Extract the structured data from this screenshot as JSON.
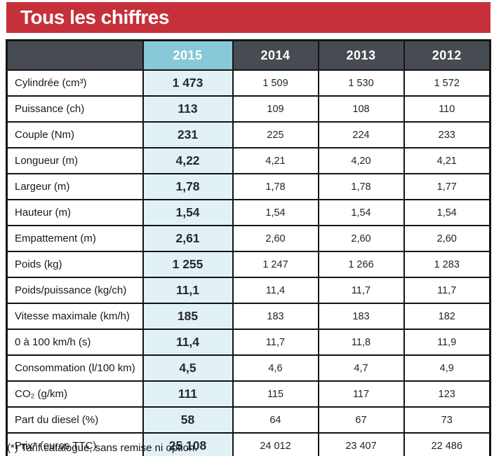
{
  "banner": {
    "title": "Tous les chiffres"
  },
  "table": {
    "columns": [
      "",
      "2015",
      "2014",
      "2013",
      "2012"
    ],
    "rows": [
      {
        "label": "Cylindrée (cm³)",
        "values": [
          "1 473",
          "1 509",
          "1 530",
          "1 572"
        ]
      },
      {
        "label": "Puissance (ch)",
        "values": [
          "113",
          "109",
          "108",
          "110"
        ]
      },
      {
        "label": "Couple (Nm)",
        "values": [
          "231",
          "225",
          "224",
          "233"
        ]
      },
      {
        "label": "Longueur (m)",
        "values": [
          "4,22",
          "4,21",
          "4,20",
          "4,21"
        ]
      },
      {
        "label": "Largeur (m)",
        "values": [
          "1,78",
          "1,78",
          "1,78",
          "1,77"
        ]
      },
      {
        "label": "Hauteur (m)",
        "values": [
          "1,54",
          "1,54",
          "1,54",
          "1,54"
        ]
      },
      {
        "label": "Empattement (m)",
        "values": [
          "2,61",
          "2,60",
          "2,60",
          "2,60"
        ]
      },
      {
        "label": "Poids (kg)",
        "values": [
          "1 255",
          "1 247",
          "1 266",
          "1 283"
        ]
      },
      {
        "label": "Poids/puissance (kg/ch)",
        "values": [
          "11,1",
          "11,4",
          "11,7",
          "11,7"
        ]
      },
      {
        "label": "Vitesse maximale (km/h)",
        "values": [
          "185",
          "183",
          "183",
          "182"
        ]
      },
      {
        "label": "0 à 100 km/h (s)",
        "values": [
          "11,4",
          "11,7",
          "11,8",
          "11,9"
        ]
      },
      {
        "label": "Consommation (l/100 km)",
        "values": [
          "4,5",
          "4,6",
          "4,7",
          "4,9"
        ]
      },
      {
        "label": "CO₂ (g/km)",
        "values": [
          "111",
          "115",
          "117",
          "123"
        ]
      },
      {
        "label": "Part du diesel (%)",
        "values": [
          "58",
          "64",
          "67",
          "73"
        ]
      },
      {
        "label": "Prix* (euros TTC)",
        "values": [
          "25 108",
          "24 012",
          "23 407",
          "22 486"
        ]
      }
    ]
  },
  "footnote": "(*) Tarif catalogue, sans remise ni option.",
  "colors": {
    "banner_red": "#c5303a",
    "header_dark": "#474c53",
    "highlight_header_cyan": "#87c9d8",
    "highlight_cell_cyan": "#e2f1f5",
    "border_black": "#141414",
    "text_white": "#ffffff"
  }
}
